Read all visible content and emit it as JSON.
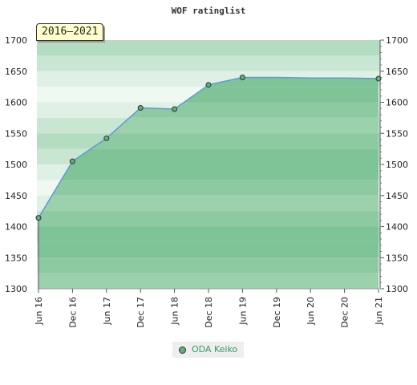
{
  "chart_data": {
    "type": "line",
    "title": "WOF ratinglist",
    "period_label": "2016–2021",
    "x_ticks": [
      "Jun 16",
      "Dec 16",
      "Jun 17",
      "Dec 17",
      "Jun 18",
      "Dec 18",
      "Jun 19",
      "Dec 19",
      "Jun 20",
      "Dec 20",
      "Jun 21"
    ],
    "y_ticks": [
      1300,
      1350,
      1400,
      1450,
      1500,
      1550,
      1600,
      1650,
      1700
    ],
    "ylim": [
      1300,
      1700
    ],
    "series": [
      {
        "name": "ODA Keiko",
        "color": "#5b9bd5",
        "marker_color": "#5fae7b",
        "points": [
          {
            "x": "Jun 16",
            "y": 1414,
            "marker": true
          },
          {
            "x": "Dec 16",
            "y": 1505,
            "marker": true
          },
          {
            "x": "Jun 17",
            "y": 1542,
            "marker": true
          },
          {
            "x": "Dec 17",
            "y": 1591,
            "marker": true
          },
          {
            "x": "Jun 18",
            "y": 1589,
            "marker": true
          },
          {
            "x": "Dec 18",
            "y": 1628,
            "marker": true
          },
          {
            "x": "Jun 19",
            "y": 1640,
            "marker": true
          },
          {
            "x": "Dec 19",
            "y": 1640,
            "marker": false
          },
          {
            "x": "Jun 20",
            "y": 1639,
            "marker": false
          },
          {
            "x": "Dec 20",
            "y": 1639,
            "marker": false
          },
          {
            "x": "Jun 21",
            "y": 1638,
            "marker": true
          }
        ]
      }
    ],
    "grid": true,
    "legend_position": "bottom-center",
    "colors": {
      "band_light": [
        "#b3dcc0",
        "#c8e6d1",
        "#dff0e4",
        "#f0f8f2"
      ],
      "band_dark": [
        "#9dd1ae",
        "#8dcaa1",
        "#7fc497"
      ],
      "area_fill": "#5fae7b"
    }
  }
}
